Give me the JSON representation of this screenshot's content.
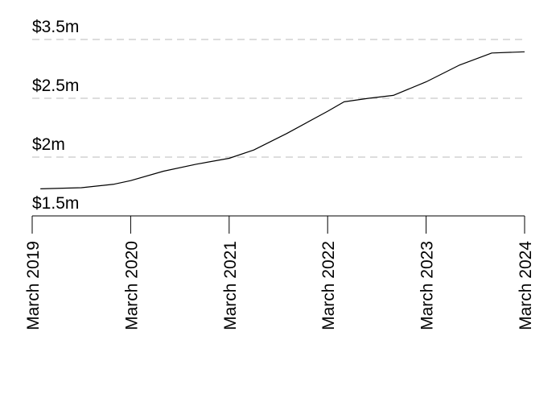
{
  "chart_data": {
    "type": "line",
    "x": [
      "2019-04",
      "2019-09",
      "2020-01",
      "2020-03",
      "2020-07",
      "2020-11",
      "2021-03",
      "2021-06",
      "2021-10",
      "2022-03",
      "2022-05",
      "2022-08",
      "2022-11",
      "2023-03",
      "2023-07",
      "2023-11",
      "2024-03"
    ],
    "series": [
      {
        "color": "#000000",
        "values": [
          1730000,
          1740000,
          1770000,
          1800000,
          1880000,
          1940000,
          1990000,
          2060000,
          2200000,
          2390000,
          2470000,
          2500000,
          2550000,
          2780000,
          3060000,
          3270000,
          3290000
        ]
      }
    ],
    "xlim": [
      "2019-03",
      "2024-03"
    ],
    "xticks": [
      {
        "value": "2019-03",
        "label": "March 2019"
      },
      {
        "value": "2020-03",
        "label": "March 2020"
      },
      {
        "value": "2021-03",
        "label": "March 2021"
      },
      {
        "value": "2022-03",
        "label": "March 2022"
      },
      {
        "value": "2023-03",
        "label": "March 2023"
      },
      {
        "value": "2024-03",
        "label": "March 2024"
      }
    ],
    "ylim": [
      1500000,
      3500000
    ],
    "yticks": [
      {
        "value": 1500000,
        "label": "$1.5m"
      },
      {
        "value": 2000000,
        "label": "$2m"
      },
      {
        "value": 2500000,
        "label": "$2.5m"
      },
      {
        "value": 3500000,
        "label": "$3.5m"
      }
    ],
    "grid": true
  }
}
